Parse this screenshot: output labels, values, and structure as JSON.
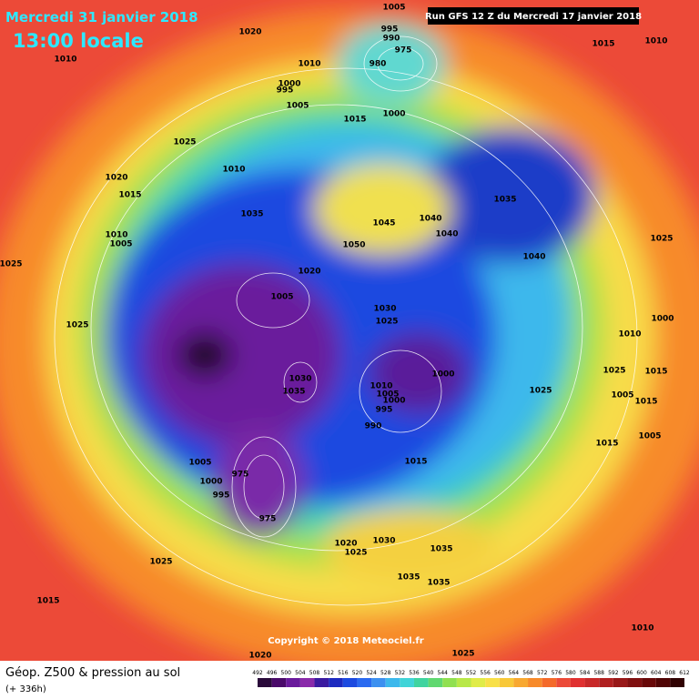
{
  "header": {
    "date": "Mercredi 31 janvier 2018",
    "time": "13:00 locale",
    "run": "Run GFS 12 Z du Mercredi 17 janvier 2018"
  },
  "map": {
    "isobar_labels": [
      1005,
      1020,
      1010,
      1010,
      995,
      990,
      980,
      975,
      1000,
      995,
      1005,
      1015,
      1000,
      1015,
      1010,
      1025,
      1010,
      1020,
      1015,
      1035,
      1010,
      1005,
      1045,
      1040,
      1040,
      1050,
      1035,
      1040,
      1025,
      1025,
      1020,
      1005,
      1030,
      1025,
      1025,
      1000,
      1010,
      1030,
      1035,
      1000,
      1010,
      1005,
      1000,
      995,
      990,
      1025,
      1015,
      1025,
      1005,
      1015,
      1015,
      1005,
      1015,
      1005,
      1000,
      995,
      975,
      975,
      1020,
      1025,
      1030,
      1035,
      1035,
      1035,
      1025,
      1015,
      1010,
      1020,
      1025
    ]
  },
  "copyright": "Copyright © 2018 Meteociel.fr",
  "footer": {
    "title": "Géop. Z500 & pression au sol",
    "lead": "(+ 336h)"
  },
  "legend": {
    "ticks": [
      492,
      496,
      500,
      504,
      508,
      512,
      516,
      520,
      524,
      528,
      532,
      536,
      540,
      544,
      548,
      552,
      556,
      560,
      564,
      568,
      572,
      576,
      580,
      584,
      588,
      592,
      596,
      600,
      604,
      608,
      612
    ]
  }
}
